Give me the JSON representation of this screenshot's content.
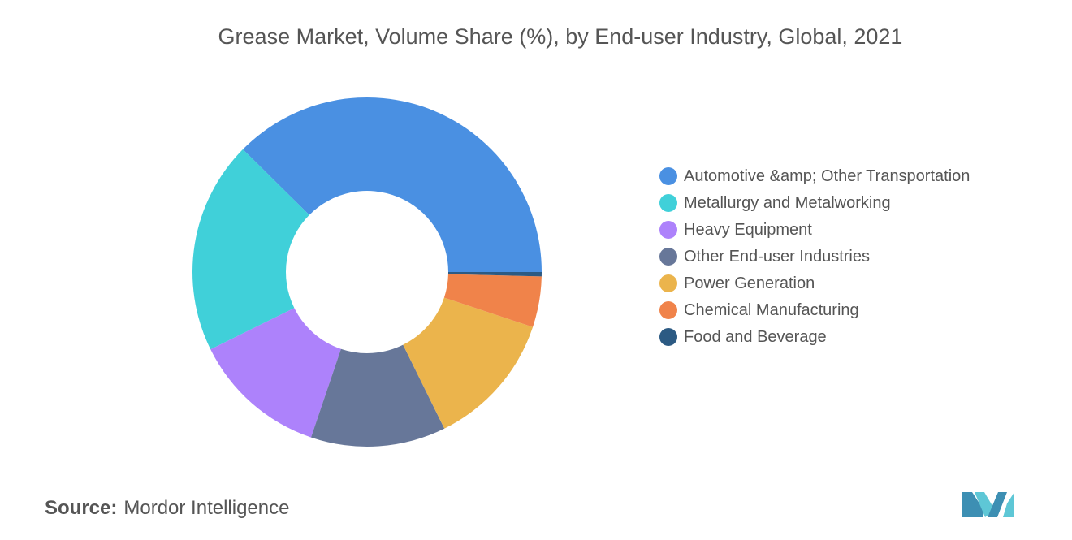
{
  "chart_data": {
    "type": "donut",
    "title": "Grease Market, Volume Share (%), by End-user Industry, Global, 2021",
    "series": [
      {
        "name": "Automotive &amp; Other Transportation",
        "color": "#4a90e2",
        "values": [
          37.6
        ]
      },
      {
        "name": "Metallurgy and Metalworking",
        "color": "#40d0d9",
        "values": [
          19.7
        ]
      },
      {
        "name": "Heavy Equipment",
        "color": "#ad82fb",
        "values": [
          12.5
        ]
      },
      {
        "name": "Other End-user Industries",
        "color": "#677799",
        "values": [
          12.5
        ]
      },
      {
        "name": "Power Generation",
        "color": "#ebb44c",
        "values": [
          12.6
        ]
      },
      {
        "name": "Chemical Manufacturing",
        "color": "#f0834a",
        "values": [
          4.7
        ]
      },
      {
        "name": "Food and Beverage",
        "color": "#2c5a83",
        "values": [
          0.4
        ]
      }
    ],
    "source_label": "Source:",
    "source": "Mordor Intelligence"
  }
}
